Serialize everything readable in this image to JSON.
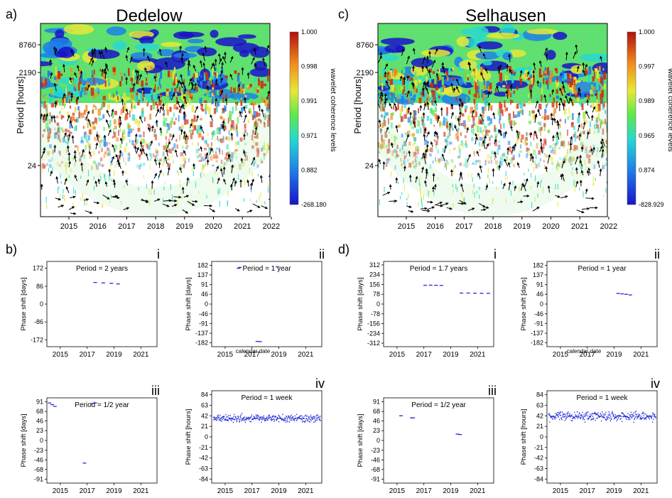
{
  "colorbar_label": "wavelet coherence levels",
  "wavelet_panels": [
    {
      "panel_letter": "a)",
      "title": "Dedelow",
      "y_label": "Period [hours]",
      "y_ticks": [
        "8760",
        "2190",
        "24"
      ],
      "x_ticks": [
        "2015",
        "2016",
        "2017",
        "2018",
        "2019",
        "2020",
        "2021",
        "2022"
      ],
      "colorbar_ticks": [
        "1.000",
        "0.998",
        "0.991",
        "0.971",
        "0.882",
        "-268.180"
      ]
    },
    {
      "panel_letter": "c)",
      "title": "Selhausen",
      "y_label": "Period [hours]",
      "y_ticks": [
        "8760",
        "2190",
        "24"
      ],
      "x_ticks": [
        "2015",
        "2016",
        "2017",
        "2018",
        "2019",
        "2020",
        "2021",
        "2022"
      ],
      "colorbar_ticks": [
        "1.000",
        "0.997",
        "0.989",
        "0.965",
        "0.874",
        "-828.929"
      ]
    }
  ],
  "section_letters": {
    "b": "b)",
    "d": "d)"
  },
  "x_label_note": "calendar date",
  "chart_data": [
    {
      "id": "b-i",
      "type": "scatter",
      "roman": "i",
      "title": "Period = 2 years",
      "ylabel": "Phase shift [days]",
      "yticks": [
        172,
        86,
        0,
        -86,
        -172
      ],
      "ylim": [
        -205,
        205
      ],
      "xticks": [
        "2015",
        "2017",
        "2019",
        "2021"
      ],
      "xlim": [
        2014.0,
        2022.2
      ],
      "series": [
        {
          "color": "#1f2bd6",
          "x": [
            2017.6,
            2018.2,
            2018.8,
            2019.3
          ],
          "y": [
            104,
            102,
            100,
            97
          ]
        }
      ]
    },
    {
      "id": "b-ii",
      "type": "scatter",
      "roman": "ii",
      "title": "Period = 1 year",
      "ylabel": "Phase shift [days]",
      "yticks": [
        182,
        137,
        91,
        46,
        0,
        -46,
        -91,
        -137,
        -182
      ],
      "ylim": [
        -200,
        200
      ],
      "xticks": [
        "2015",
        "2017",
        "2019",
        "2021"
      ],
      "xlim": [
        2014.0,
        2022.2
      ],
      "series": [
        {
          "color": "#1f2bd6",
          "x": [
            2016.0,
            2016.1,
            2017.4,
            2017.6,
            2018.9
          ],
          "y": [
            168,
            172,
            -175,
            -176,
            175
          ]
        }
      ]
    },
    {
      "id": "b-iii",
      "type": "scatter",
      "roman": "iii",
      "title": "Period = 1/2 year",
      "ylabel": "Phase shift [days]",
      "yticks": [
        91,
        68,
        46,
        23,
        0,
        -23,
        -46,
        -68,
        -91
      ],
      "ylim": [
        -100,
        100
      ],
      "xticks": [
        "2015",
        "2017",
        "2019",
        "2021"
      ],
      "xlim": [
        2014.0,
        2022.2
      ],
      "series": [
        {
          "color": "#1f2bd6",
          "x": [
            2014.2,
            2014.4,
            2014.6,
            2017.4,
            2017.6,
            2016.8
          ],
          "y": [
            88,
            84,
            80,
            87,
            88,
            -53
          ]
        }
      ]
    },
    {
      "id": "b-iv",
      "type": "scatter",
      "roman": "iv",
      "title": "Period = 1 week",
      "ylabel": "Phase shift [hours]",
      "yticks": [
        84,
        63,
        42,
        21,
        0,
        -21,
        -42,
        -63,
        -84
      ],
      "ylim": [
        -92,
        92
      ],
      "xticks": [
        "2015",
        "2017",
        "2019",
        "2021"
      ],
      "xlim": [
        2014.0,
        2022.2
      ],
      "noise": {
        "center": 38,
        "spread": 7,
        "n": 320,
        "seed": 11
      }
    },
    {
      "id": "d-i",
      "type": "scatter",
      "roman": "i",
      "title": "Period = 1.7 years",
      "ylabel": "Phase shift [days]",
      "yticks": [
        312,
        234,
        156,
        78,
        0,
        -78,
        -156,
        -234,
        -312
      ],
      "ylim": [
        -340,
        340
      ],
      "xticks": [
        "2015",
        "2017",
        "2019",
        "2021"
      ],
      "xlim": [
        2014.0,
        2022.2
      ],
      "series": [
        {
          "color": "#1f2bd6",
          "x": [
            2017.1,
            2017.5,
            2017.9,
            2018.3,
            2019.8,
            2020.3,
            2020.8,
            2021.3,
            2021.8
          ],
          "y": [
            150,
            151,
            150,
            149,
            88,
            88,
            87,
            86,
            86
          ]
        }
      ]
    },
    {
      "id": "d-ii",
      "type": "scatter",
      "roman": "ii",
      "title": "Period = 1 year",
      "ylabel": "Phase shift [days]",
      "yticks": [
        182,
        137,
        91,
        46,
        0,
        -46,
        -91,
        -137,
        -182
      ],
      "ylim": [
        -200,
        200
      ],
      "xticks": [
        "2015",
        "2017",
        "2019",
        "2021"
      ],
      "xlim": [
        2014.0,
        2022.2
      ],
      "series": [
        {
          "color": "#1f2bd6",
          "x": [
            2019.3,
            2019.6,
            2019.9,
            2020.2
          ],
          "y": [
            50,
            48,
            46,
            43
          ]
        }
      ]
    },
    {
      "id": "d-iii",
      "type": "scatter",
      "roman": "iii",
      "title": "Period = 1/2 year",
      "ylabel": "Phase shift [days]",
      "yticks": [
        91,
        68,
        46,
        23,
        0,
        -23,
        -46,
        -68,
        -91
      ],
      "ylim": [
        -100,
        100
      ],
      "xticks": [
        "2015",
        "2017",
        "2019",
        "2021"
      ],
      "xlim": [
        2014.0,
        2022.2
      ],
      "series": [
        {
          "color": "#1f2bd6",
          "x": [
            2015.3,
            2016.1,
            2016.2,
            2019.5,
            2019.7
          ],
          "y": [
            58,
            53,
            53,
            15,
            14
          ]
        }
      ]
    },
    {
      "id": "d-iv",
      "type": "scatter",
      "roman": "iv",
      "title": "Period = 1 week",
      "ylabel": "Phase shift [hours]",
      "yticks": [
        84,
        63,
        42,
        21,
        0,
        -21,
        -42,
        -63,
        -84
      ],
      "ylim": [
        -92,
        92
      ],
      "xticks": [
        "2015",
        "2017",
        "2019",
        "2021"
      ],
      "xlim": [
        2014.0,
        2022.2
      ],
      "noise": {
        "center": 42,
        "spread": 9,
        "n": 320,
        "seed": 29
      }
    }
  ]
}
